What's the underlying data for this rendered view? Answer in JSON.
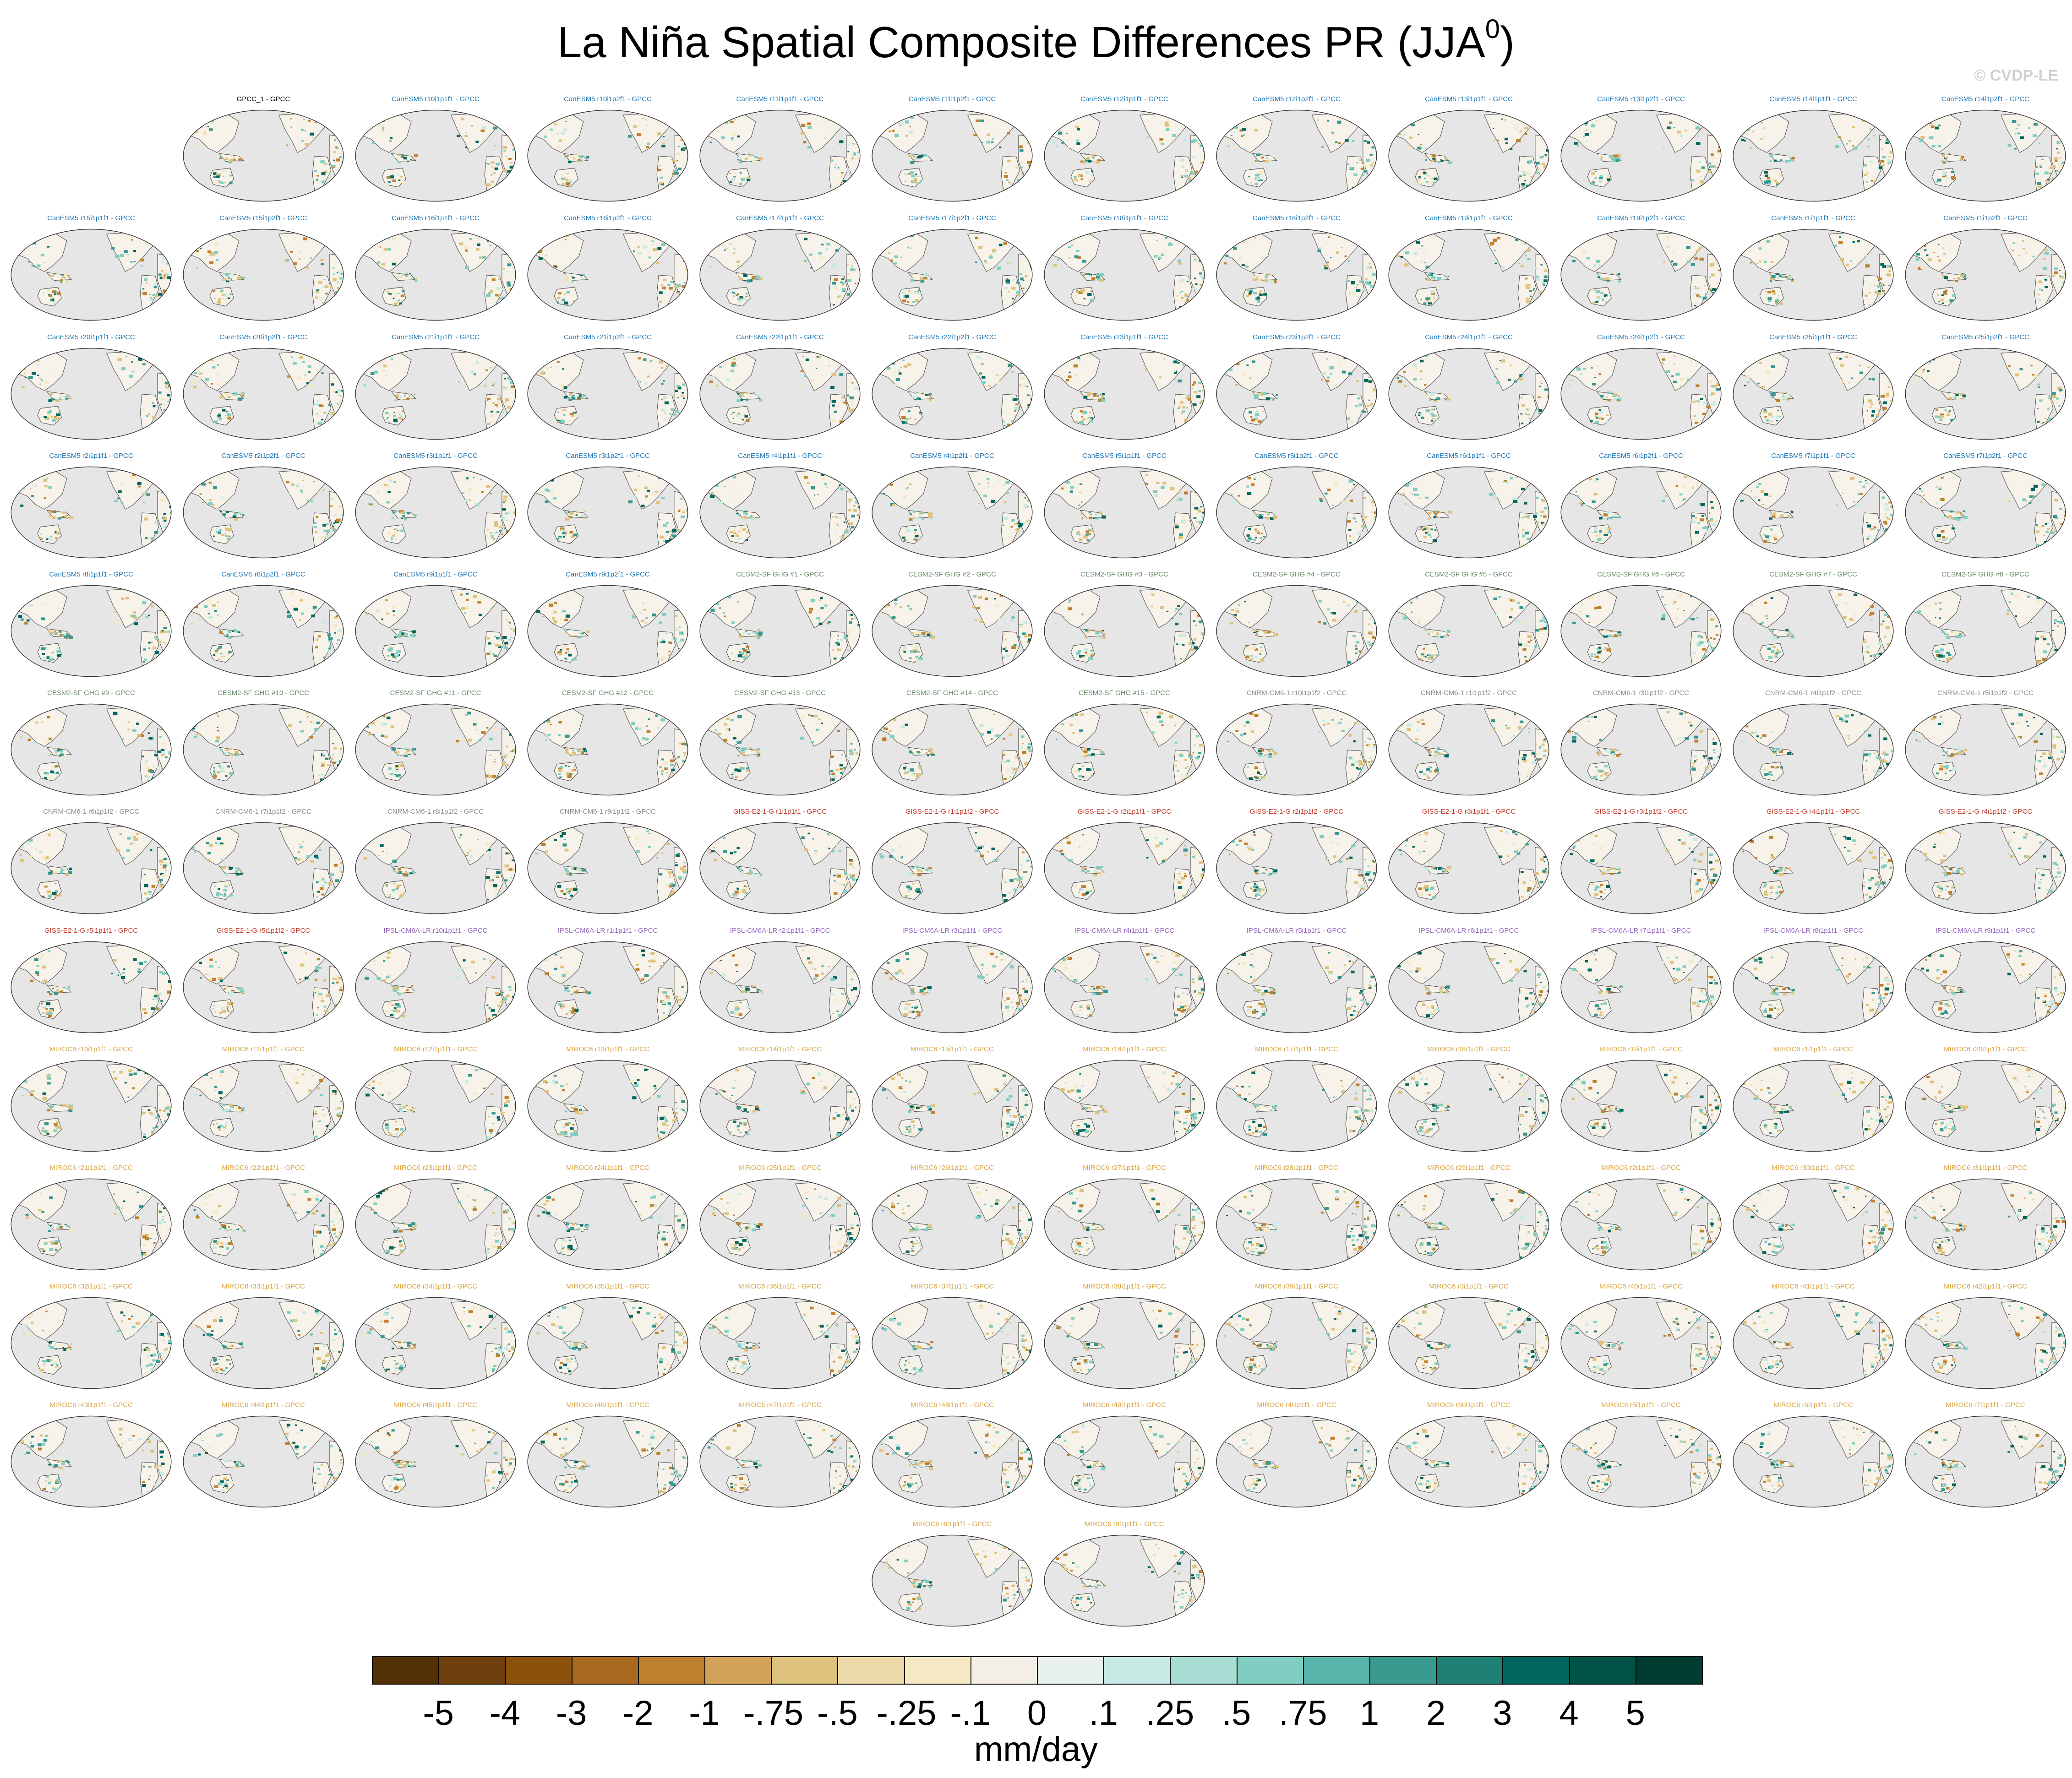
{
  "figure": {
    "title": "La Niña Spatial Composite Differences PR (JJA",
    "title_sup": "0",
    "title_close": ")",
    "watermark": "© CVDP-LE"
  },
  "panel_rows": [
    [
      {
        "label": "GPCC_1 - GPCC",
        "color": "#000000"
      },
      {
        "label": "CanESM5 r10i1p1f1 - GPCC",
        "color": "#1f77b4"
      },
      {
        "label": "CanESM5 r10i1p2f1 - GPCC",
        "color": "#1f77b4"
      },
      {
        "label": "CanESM5 r11i1p1f1 - GPCC",
        "color": "#1f77b4"
      },
      {
        "label": "CanESM5 r11i1p2f1 - GPCC",
        "color": "#1f77b4"
      },
      {
        "label": "CanESM5 r12i1p1f1 - GPCC",
        "color": "#1f77b4"
      },
      {
        "label": "CanESM5 r12i1p2f1 - GPCC",
        "color": "#1f77b4"
      },
      {
        "label": "CanESM5 r13i1p1f1 - GPCC",
        "color": "#1f77b4"
      },
      {
        "label": "CanESM5 r13i1p2f1 - GPCC",
        "color": "#1f77b4"
      },
      {
        "label": "CanESM5 r14i1p1f1 - GPCC",
        "color": "#1f77b4"
      },
      {
        "label": "CanESM5 r14i1p2f1 - GPCC",
        "color": "#1f77b4"
      }
    ],
    [
      {
        "label": "CanESM5 r15i1p1f1 - GPCC",
        "color": "#1f77b4"
      },
      {
        "label": "CanESM5 r15i1p2f1 - GPCC",
        "color": "#1f77b4"
      },
      {
        "label": "CanESM5 r16i1p1f1 - GPCC",
        "color": "#1f77b4"
      },
      {
        "label": "CanESM5 r16i1p2f1 - GPCC",
        "color": "#1f77b4"
      },
      {
        "label": "CanESM5 r17i1p1f1 - GPCC",
        "color": "#1f77b4"
      },
      {
        "label": "CanESM5 r17i1p2f1 - GPCC",
        "color": "#1f77b4"
      },
      {
        "label": "CanESM5 r18i1p1f1 - GPCC",
        "color": "#1f77b4"
      },
      {
        "label": "CanESM5 r18i1p2f1 - GPCC",
        "color": "#1f77b4"
      },
      {
        "label": "CanESM5 r19i1p1f1 - GPCC",
        "color": "#1f77b4"
      },
      {
        "label": "CanESM5 r19i1p2f1 - GPCC",
        "color": "#1f77b4"
      },
      {
        "label": "CanESM5 r1i1p1f1 - GPCC",
        "color": "#1f77b4"
      },
      {
        "label": "CanESM5 r1i1p2f1 - GPCC",
        "color": "#1f77b4"
      }
    ],
    [
      {
        "label": "CanESM5 r20i1p1f1 - GPCC",
        "color": "#1f77b4"
      },
      {
        "label": "CanESM5 r20i1p2f1 - GPCC",
        "color": "#1f77b4"
      },
      {
        "label": "CanESM5 r21i1p1f1 - GPCC",
        "color": "#1f77b4"
      },
      {
        "label": "CanESM5 r21i1p2f1 - GPCC",
        "color": "#1f77b4"
      },
      {
        "label": "CanESM5 r22i1p1f1 - GPCC",
        "color": "#1f77b4"
      },
      {
        "label": "CanESM5 r22i1p2f1 - GPCC",
        "color": "#1f77b4"
      },
      {
        "label": "CanESM5 r23i1p1f1 - GPCC",
        "color": "#1f77b4"
      },
      {
        "label": "CanESM5 r23i1p2f1 - GPCC",
        "color": "#1f77b4"
      },
      {
        "label": "CanESM5 r24i1p1f1 - GPCC",
        "color": "#1f77b4"
      },
      {
        "label": "CanESM5 r24i1p2f1 - GPCC",
        "color": "#1f77b4"
      },
      {
        "label": "CanESM5 r25i1p1f1 - GPCC",
        "color": "#1f77b4"
      },
      {
        "label": "CanESM5 r25i1p2f1 - GPCC",
        "color": "#1f77b4"
      }
    ],
    [
      {
        "label": "CanESM5 r2i1p1f1 - GPCC",
        "color": "#1f77b4"
      },
      {
        "label": "CanESM5 r2i1p2f1 - GPCC",
        "color": "#1f77b4"
      },
      {
        "label": "CanESM5 r3i1p1f1 - GPCC",
        "color": "#1f77b4"
      },
      {
        "label": "CanESM5 r3i1p2f1 - GPCC",
        "color": "#1f77b4"
      },
      {
        "label": "CanESM5 r4i1p1f1 - GPCC",
        "color": "#1f77b4"
      },
      {
        "label": "CanESM5 r4i1p2f1 - GPCC",
        "color": "#1f77b4"
      },
      {
        "label": "CanESM5 r5i1p1f1 - GPCC",
        "color": "#1f77b4"
      },
      {
        "label": "CanESM5 r5i1p2f1 - GPCC",
        "color": "#1f77b4"
      },
      {
        "label": "CanESM5 r6i1p1f1 - GPCC",
        "color": "#1f77b4"
      },
      {
        "label": "CanESM5 r6i1p2f1 - GPCC",
        "color": "#1f77b4"
      },
      {
        "label": "CanESM5 r7i1p1f1 - GPCC",
        "color": "#1f77b4"
      },
      {
        "label": "CanESM5 r7i1p2f1 - GPCC",
        "color": "#1f77b4"
      }
    ],
    [
      {
        "label": "CanESM5 r8i1p1f1 - GPCC",
        "color": "#1f77b4"
      },
      {
        "label": "CanESM5 r8i1p2f1 - GPCC",
        "color": "#1f77b4"
      },
      {
        "label": "CanESM5 r9i1p1f1 - GPCC",
        "color": "#1f77b4"
      },
      {
        "label": "CanESM5 r9i1p2f1 - GPCC",
        "color": "#1f77b4"
      },
      {
        "label": "CESM2-SF GHG #1 - GPCC",
        "color": "#6b8e6b"
      },
      {
        "label": "CESM2-SF GHG #2 - GPCC",
        "color": "#6b8e6b"
      },
      {
        "label": "CESM2-SF GHG #3 - GPCC",
        "color": "#6b8e6b"
      },
      {
        "label": "CESM2-SF GHG #4 - GPCC",
        "color": "#6b8e6b"
      },
      {
        "label": "CESM2-SF GHG #5 - GPCC",
        "color": "#6b8e6b"
      },
      {
        "label": "CESM2-SF GHG #6 - GPCC",
        "color": "#6b8e6b"
      },
      {
        "label": "CESM2-SF GHG #7 - GPCC",
        "color": "#6b8e6b"
      },
      {
        "label": "CESM2-SF GHG #8 - GPCC",
        "color": "#6b8e6b"
      }
    ],
    [
      {
        "label": "CESM2-SF GHG #9 - GPCC",
        "color": "#6b8e6b"
      },
      {
        "label": "CESM2-SF GHG #10 - GPCC",
        "color": "#6b8e6b"
      },
      {
        "label": "CESM2-SF GHG #11 - GPCC",
        "color": "#6b8e6b"
      },
      {
        "label": "CESM2-SF GHG #12 - GPCC",
        "color": "#6b8e6b"
      },
      {
        "label": "CESM2-SF GHG #13 - GPCC",
        "color": "#6b8e6b"
      },
      {
        "label": "CESM2-SF GHG #14 - GPCC",
        "color": "#6b8e6b"
      },
      {
        "label": "CESM2-SF GHG #15 - GPCC",
        "color": "#6b8e6b"
      },
      {
        "label": "CNRM-CM6-1 r10i1p1f2 - GPCC",
        "color": "#8c8c8c"
      },
      {
        "label": "CNRM-CM6-1 r1i1p1f2 - GPCC",
        "color": "#8c8c8c"
      },
      {
        "label": "CNRM-CM6-1 r3i1p1f2 - GPCC",
        "color": "#8c8c8c"
      },
      {
        "label": "CNRM-CM6-1 r4i1p1f2 - GPCC",
        "color": "#8c8c8c"
      },
      {
        "label": "CNRM-CM6-1 r5i1p1f2 - GPCC",
        "color": "#8c8c8c"
      }
    ],
    [
      {
        "label": "CNRM-CM6-1 r6i1p1f2 - GPCC",
        "color": "#8c8c8c"
      },
      {
        "label": "CNRM-CM6-1 r7i1p1f2 - GPCC",
        "color": "#8c8c8c"
      },
      {
        "label": "CNRM-CM6-1 r8i1p1f2 - GPCC",
        "color": "#8c8c8c"
      },
      {
        "label": "CNRM-CM6-1 r9i1p1f2 - GPCC",
        "color": "#8c8c8c"
      },
      {
        "label": "GISS-E2-1-G r1i1p1f1 - GPCC",
        "color": "#c0392b"
      },
      {
        "label": "GISS-E2-1-G r1i1p1f2 - GPCC",
        "color": "#c0392b"
      },
      {
        "label": "GISS-E2-1-G r2i1p1f1 - GPCC",
        "color": "#c0392b"
      },
      {
        "label": "GISS-E2-1-G r2i1p1f2 - GPCC",
        "color": "#c0392b"
      },
      {
        "label": "GISS-E2-1-G r3i1p1f1 - GPCC",
        "color": "#c0392b"
      },
      {
        "label": "GISS-E2-1-G r3i1p1f2 - GPCC",
        "color": "#c0392b"
      },
      {
        "label": "GISS-E2-1-G r4i1p1f1 - GPCC",
        "color": "#c0392b"
      },
      {
        "label": "GISS-E2-1-G r4i1p1f2 - GPCC",
        "color": "#c0392b"
      }
    ],
    [
      {
        "label": "GISS-E2-1-G r5i1p1f1 - GPCC",
        "color": "#c0392b"
      },
      {
        "label": "GISS-E2-1-G r5i1p1f2 - GPCC",
        "color": "#c0392b"
      },
      {
        "label": "IPSL-CM6A-LR r10i1p1f1 - GPCC",
        "color": "#9467bd"
      },
      {
        "label": "IPSL-CM6A-LR r1i1p1f1 - GPCC",
        "color": "#9467bd"
      },
      {
        "label": "IPSL-CM6A-LR r2i1p1f1 - GPCC",
        "color": "#9467bd"
      },
      {
        "label": "IPSL-CM6A-LR r3i1p1f1 - GPCC",
        "color": "#9467bd"
      },
      {
        "label": "IPSL-CM6A-LR r4i1p1f1 - GPCC",
        "color": "#9467bd"
      },
      {
        "label": "IPSL-CM6A-LR r5i1p1f1 - GPCC",
        "color": "#9467bd"
      },
      {
        "label": "IPSL-CM6A-LR r6i1p1f1 - GPCC",
        "color": "#9467bd"
      },
      {
        "label": "IPSL-CM6A-LR r7i1p1f1 - GPCC",
        "color": "#9467bd"
      },
      {
        "label": "IPSL-CM6A-LR r8i1p1f1 - GPCC",
        "color": "#9467bd"
      },
      {
        "label": "IPSL-CM6A-LR r9i1p1f1 - GPCC",
        "color": "#9467bd"
      }
    ],
    [
      {
        "label": "MIROC6 r10i1p1f1 - GPCC",
        "color": "#d9a441"
      },
      {
        "label": "MIROC6 r11i1p1f1 - GPCC",
        "color": "#d9a441"
      },
      {
        "label": "MIROC6 r12i1p1f1 - GPCC",
        "color": "#d9a441"
      },
      {
        "label": "MIROC6 r13i1p1f1 - GPCC",
        "color": "#d9a441"
      },
      {
        "label": "MIROC6 r14i1p1f1 - GPCC",
        "color": "#d9a441"
      },
      {
        "label": "MIROC6 r15i1p1f1 - GPCC",
        "color": "#d9a441"
      },
      {
        "label": "MIROC6 r16i1p1f1 - GPCC",
        "color": "#d9a441"
      },
      {
        "label": "MIROC6 r17i1p1f1 - GPCC",
        "color": "#d9a441"
      },
      {
        "label": "MIROC6 r18i1p1f1 - GPCC",
        "color": "#d9a441"
      },
      {
        "label": "MIROC6 r19i1p1f1 - GPCC",
        "color": "#d9a441"
      },
      {
        "label": "MIROC6 r1i1p1f1 - GPCC",
        "color": "#d9a441"
      },
      {
        "label": "MIROC6 r20i1p1f1 - GPCC",
        "color": "#d9a441"
      }
    ],
    [
      {
        "label": "MIROC6 r21i1p1f1 - GPCC",
        "color": "#d9a441"
      },
      {
        "label": "MIROC6 r22i1p1f1 - GPCC",
        "color": "#d9a441"
      },
      {
        "label": "MIROC6 r23i1p1f1 - GPCC",
        "color": "#d9a441"
      },
      {
        "label": "MIROC6 r24i1p1f1 - GPCC",
        "color": "#d9a441"
      },
      {
        "label": "MIROC6 r25i1p1f1 - GPCC",
        "color": "#d9a441"
      },
      {
        "label": "MIROC6 r26i1p1f1 - GPCC",
        "color": "#d9a441"
      },
      {
        "label": "MIROC6 r27i1p1f1 - GPCC",
        "color": "#d9a441"
      },
      {
        "label": "MIROC6 r28i1p1f1 - GPCC",
        "color": "#d9a441"
      },
      {
        "label": "MIROC6 r29i1p1f1 - GPCC",
        "color": "#d9a441"
      },
      {
        "label": "MIROC6 r2i1p1f1 - GPCC",
        "color": "#d9a441"
      },
      {
        "label": "MIROC6 r30i1p1f1 - GPCC",
        "color": "#d9a441"
      },
      {
        "label": "MIROC6 r31i1p1f1 - GPCC",
        "color": "#d9a441"
      }
    ],
    [
      {
        "label": "MIROC6 r32i1p1f1 - GPCC",
        "color": "#d9a441"
      },
      {
        "label": "MIROC6 r33i1p1f1 - GPCC",
        "color": "#d9a441"
      },
      {
        "label": "MIROC6 r34i1p1f1 - GPCC",
        "color": "#d9a441"
      },
      {
        "label": "MIROC6 r35i1p1f1 - GPCC",
        "color": "#d9a441"
      },
      {
        "label": "MIROC6 r36i1p1f1 - GPCC",
        "color": "#d9a441"
      },
      {
        "label": "MIROC6 r37i1p1f1 - GPCC",
        "color": "#d9a441"
      },
      {
        "label": "MIROC6 r38i1p1f1 - GPCC",
        "color": "#d9a441"
      },
      {
        "label": "MIROC6 r39i1p1f1 - GPCC",
        "color": "#d9a441"
      },
      {
        "label": "MIROC6 r3i1p1f1 - GPCC",
        "color": "#d9a441"
      },
      {
        "label": "MIROC6 r40i1p1f1 - GPCC",
        "color": "#d9a441"
      },
      {
        "label": "MIROC6 r41i1p1f1 - GPCC",
        "color": "#d9a441"
      },
      {
        "label": "MIROC6 r42i1p1f1 - GPCC",
        "color": "#d9a441"
      }
    ],
    [
      {
        "label": "MIROC6 r43i1p1f1 - GPCC",
        "color": "#d9a441"
      },
      {
        "label": "MIROC6 r44i1p1f1 - GPCC",
        "color": "#d9a441"
      },
      {
        "label": "MIROC6 r45i1p1f1 - GPCC",
        "color": "#d9a441"
      },
      {
        "label": "MIROC6 r46i1p1f1 - GPCC",
        "color": "#d9a441"
      },
      {
        "label": "MIROC6 r47i1p1f1 - GPCC",
        "color": "#d9a441"
      },
      {
        "label": "MIROC6 r48i1p1f1 - GPCC",
        "color": "#d9a441"
      },
      {
        "label": "MIROC6 r49i1p1f1 - GPCC",
        "color": "#d9a441"
      },
      {
        "label": "MIROC6 r4i1p1f1 - GPCC",
        "color": "#d9a441"
      },
      {
        "label": "MIROC6 r50i1p1f1 - GPCC",
        "color": "#d9a441"
      },
      {
        "label": "MIROC6 r5i1p1f1 - GPCC",
        "color": "#d9a441"
      },
      {
        "label": "MIROC6 r6i1p1f1 - GPCC",
        "color": "#d9a441"
      },
      {
        "label": "MIROC6 r7i1p1f1 - GPCC",
        "color": "#d9a441"
      }
    ],
    [
      {
        "label": "MIROC6 r8i1p1f1 - GPCC",
        "color": "#d9a441"
      },
      {
        "label": "MIROC6 r9i1p1f1 - GPCC",
        "color": "#d9a441"
      }
    ]
  ],
  "colorbar": {
    "units": "mm/day",
    "colors": [
      "#543005",
      "#6e3f0c",
      "#8c510a",
      "#a8691f",
      "#bf812d",
      "#d2a25a",
      "#dfc27d",
      "#ecd9a8",
      "#f6e8c3",
      "#f3efe6",
      "#e9f1ef",
      "#c7eae5",
      "#a8ddd3",
      "#80cdc1",
      "#5ab4ac",
      "#3b9a90",
      "#1f8176",
      "#01665e",
      "#005246",
      "#003c30"
    ],
    "tick_labels": [
      "-5",
      "-4",
      "-3",
      "-2",
      "-1",
      "-.75",
      "-.5",
      "-.25",
      "-.1",
      "0",
      ".1",
      ".25",
      ".5",
      ".75",
      "1",
      "2",
      "3",
      "4",
      "5"
    ]
  }
}
